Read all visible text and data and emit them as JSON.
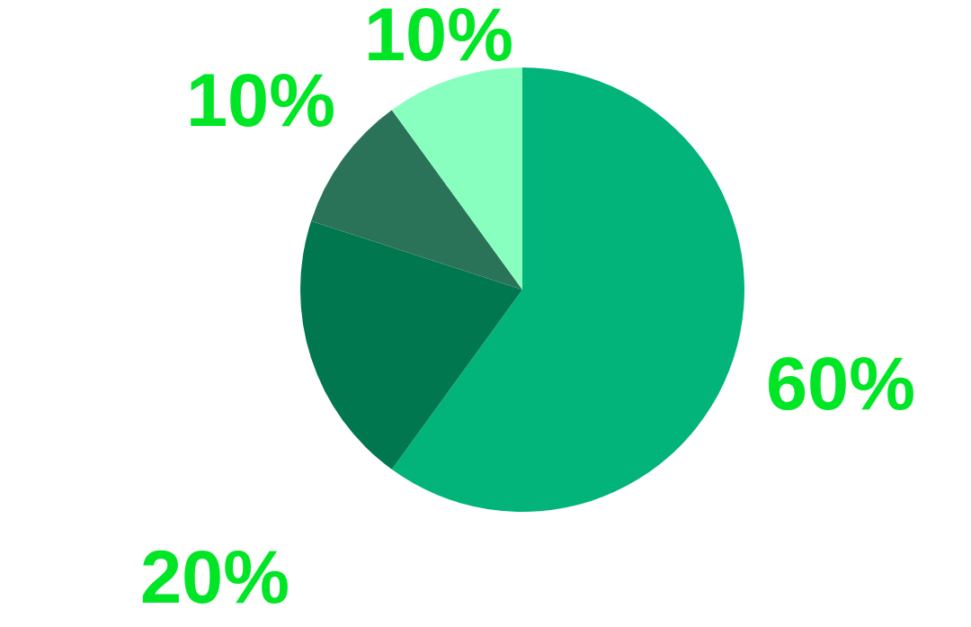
{
  "chart_data": {
    "type": "pie",
    "categories": [
      null,
      null,
      null,
      null
    ],
    "values": [
      60,
      20,
      10,
      10
    ],
    "value_labels": [
      "60%",
      "20%",
      "10%",
      "10%"
    ],
    "colors": [
      "#03b47a",
      "#00774e",
      "#2a7358",
      "#88ffbf"
    ]
  }
}
